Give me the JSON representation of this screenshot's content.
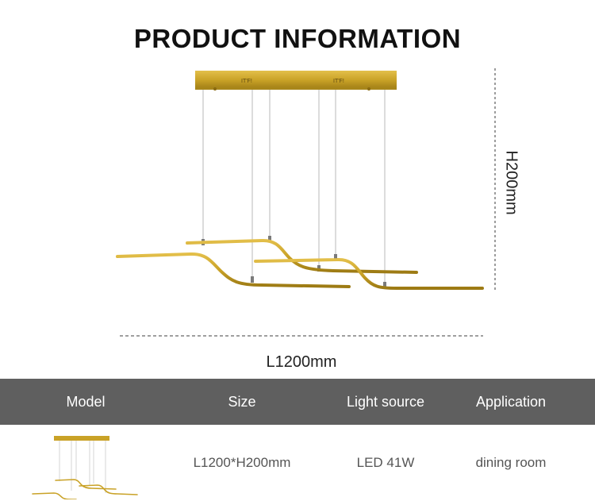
{
  "title": "PRODUCT INFORMATION",
  "dimensions": {
    "height_label": "H200mm",
    "length_label": "L1200mm"
  },
  "table": {
    "headers": [
      "Model",
      "Size",
      "Light source",
      "Application"
    ],
    "row": {
      "size": "L1200*H200mm",
      "light_source": "LED 41W",
      "application": "dining room"
    }
  },
  "colors": {
    "gold": "#c9a227",
    "header_bg": "#5f5f5f",
    "dashed": "#666666"
  }
}
